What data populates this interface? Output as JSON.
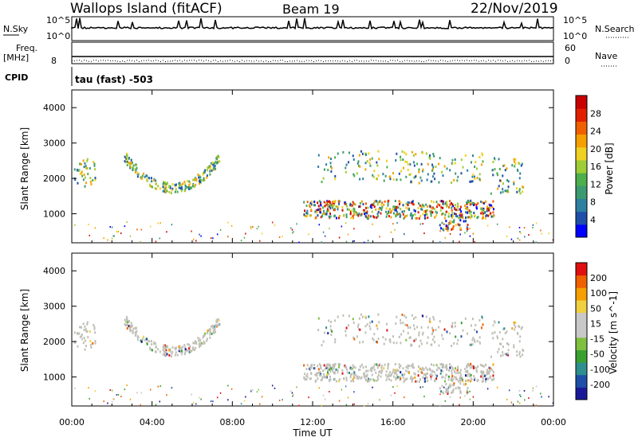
{
  "header": {
    "title": "Wallops Island (fitACF)",
    "beam": "Beam 19",
    "date": "22/Nov/2019"
  },
  "colors": {
    "power_scale": [
      "#0000ff",
      "#1f4fa8",
      "#2f7fa0",
      "#3c9a70",
      "#4dae4d",
      "#9fcd35",
      "#f0d020",
      "#f5a000",
      "#f06000",
      "#e02000",
      "#c80000"
    ],
    "velocity_scale": [
      "#1a1a99",
      "#1f4fa8",
      "#2f8f8f",
      "#3aa030",
      "#80c040",
      "#c8c8c8",
      "#c8c8c8",
      "#f0d040",
      "#f5a000",
      "#f06000",
      "#e01010"
    ],
    "gray_scatter": "#c0c0b8"
  },
  "top_panels": {
    "nsky": {
      "label": "N.Sky",
      "ytick_top": "10^5",
      "ytick_bottom": "10^0"
    },
    "nsearch": {
      "label": "N.Search",
      "ytick_top": "10^5",
      "ytick_bottom": "10^0"
    },
    "freq": {
      "label_line1": "Freq.",
      "label_line2": "[MHz]",
      "ytick": "8"
    },
    "nave": {
      "label": "Nave",
      "ytick_top": "60",
      "ytick_bottom": "0"
    },
    "cpid": {
      "label": "CPID",
      "value": "tau (fast) -503"
    }
  },
  "chart_data": [
    {
      "type": "heatmap",
      "name": "power",
      "ylabel": "Slant Range [km]",
      "yticks": [
        1000,
        2000,
        3000,
        4000
      ],
      "ylim": [
        180,
        4500
      ],
      "xlim_hours": [
        0,
        24
      ],
      "colorbar_label": "Power [dB]",
      "colorbar_ticks": [
        "28",
        "24",
        "20",
        "16",
        "12",
        "8",
        "4"
      ],
      "colorbar_range": [
        0,
        30
      ]
    },
    {
      "type": "heatmap",
      "name": "velocity",
      "ylabel": "Slant Range [km]",
      "yticks": [
        1000,
        2000,
        3000,
        4000
      ],
      "ylim": [
        180,
        4500
      ],
      "xlim_hours": [
        0,
        24
      ],
      "colorbar_label": "Velocity [m s^-1]",
      "colorbar_ticks": [
        "200",
        "100",
        "50",
        "15",
        "-15",
        "-50",
        "-100",
        "-200"
      ],
      "colorbar_range": [
        -250,
        250
      ]
    }
  ],
  "xaxis": {
    "label": "Time UT",
    "ticks": [
      "00:00",
      "04:00",
      "08:00",
      "12:00",
      "16:00",
      "20:00",
      "00:00"
    ]
  }
}
